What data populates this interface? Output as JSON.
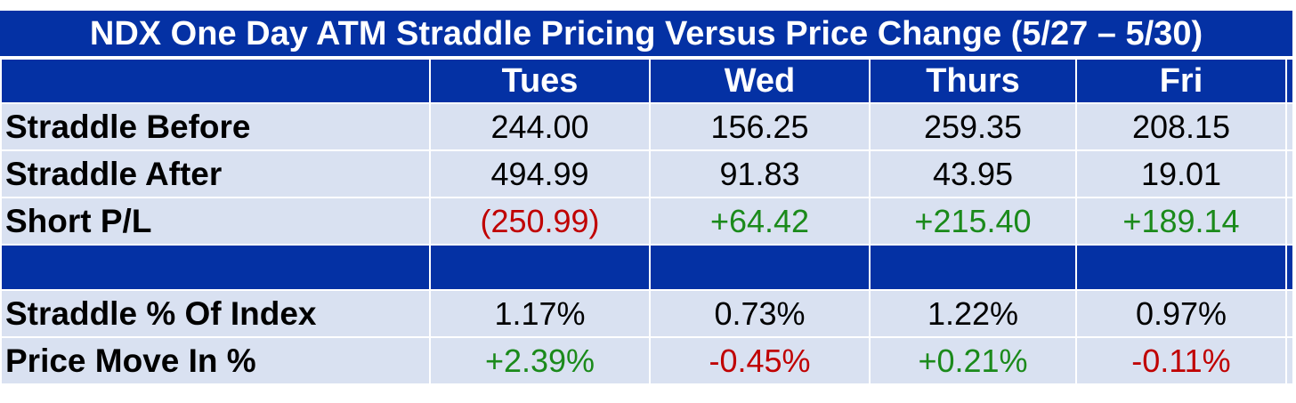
{
  "title": "NDX One Day ATM Straddle Pricing Versus Price Change (5/27 – 5/30)",
  "columns": [
    "Tues",
    "Wed",
    "Thurs",
    "Fri"
  ],
  "colors": {
    "header_bg": "#0431a4",
    "row_bg": "#d9e1f1",
    "positive": "#1b8a1b",
    "negative": "#c00000"
  },
  "rows": [
    {
      "label": "Straddle Before",
      "values": [
        "244.00",
        "156.25",
        "259.35",
        "208.15"
      ]
    },
    {
      "label": "Straddle After",
      "values": [
        "494.99",
        "91.83",
        "43.95",
        "19.01"
      ]
    },
    {
      "label": "Short P/L",
      "values": [
        "(250.99)",
        "+64.42",
        "+215.40",
        "+189.14"
      ]
    },
    {
      "label": "Straddle % Of Index",
      "values": [
        "1.17%",
        "0.73%",
        "1.22%",
        "0.97%"
      ]
    },
    {
      "label": "Price Move In %",
      "values": [
        "+2.39%",
        "-0.45%",
        "+0.21%",
        "-0.11%"
      ]
    }
  ]
}
